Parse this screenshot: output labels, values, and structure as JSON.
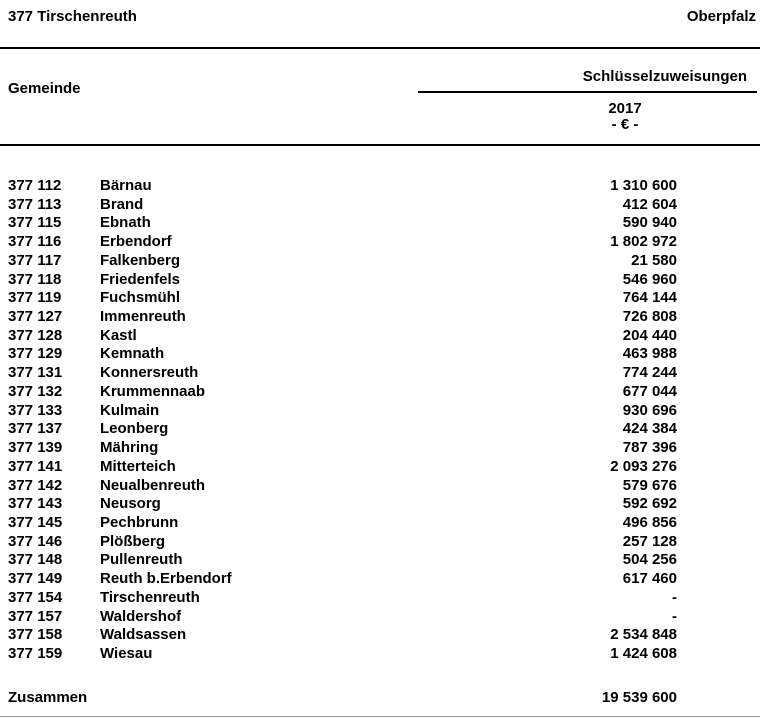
{
  "header": {
    "district": "377 Tirschenreuth",
    "region": "Oberpfalz"
  },
  "table": {
    "col_gemeinde": "Gemeinde",
    "col_allocation": "Schlüsselzuweisungen",
    "year": "2017",
    "unit": "- € -",
    "rows": [
      {
        "code": "377 112",
        "name": "Bärnau",
        "value": "1 310 600"
      },
      {
        "code": "377 113",
        "name": "Brand",
        "value": "412 604"
      },
      {
        "code": "377 115",
        "name": "Ebnath",
        "value": "590 940"
      },
      {
        "code": "377 116",
        "name": "Erbendorf",
        "value": "1 802 972"
      },
      {
        "code": "377 117",
        "name": "Falkenberg",
        "value": "21 580"
      },
      {
        "code": "377 118",
        "name": "Friedenfels",
        "value": "546 960"
      },
      {
        "code": "377 119",
        "name": "Fuchsmühl",
        "value": "764 144"
      },
      {
        "code": "377 127",
        "name": "Immenreuth",
        "value": "726 808"
      },
      {
        "code": "377 128",
        "name": "Kastl",
        "value": "204 440"
      },
      {
        "code": "377 129",
        "name": "Kemnath",
        "value": "463 988"
      },
      {
        "code": "377 131",
        "name": "Konnersreuth",
        "value": "774 244"
      },
      {
        "code": "377 132",
        "name": "Krummennaab",
        "value": "677 044"
      },
      {
        "code": "377 133",
        "name": "Kulmain",
        "value": "930 696"
      },
      {
        "code": "377 137",
        "name": "Leonberg",
        "value": "424 384"
      },
      {
        "code": "377 139",
        "name": "Mähring",
        "value": "787 396"
      },
      {
        "code": "377 141",
        "name": "Mitterteich",
        "value": "2 093 276"
      },
      {
        "code": "377 142",
        "name": "Neualbenreuth",
        "value": "579 676"
      },
      {
        "code": "377 143",
        "name": "Neusorg",
        "value": "592 692"
      },
      {
        "code": "377 145",
        "name": "Pechbrunn",
        "value": "496 856"
      },
      {
        "code": "377 146",
        "name": "Plößberg",
        "value": "257 128"
      },
      {
        "code": "377 148",
        "name": "Pullenreuth",
        "value": "504 256"
      },
      {
        "code": "377 149",
        "name": "Reuth b.Erbendorf",
        "value": "617 460"
      },
      {
        "code": "377 154",
        "name": "Tirschenreuth",
        "value": "-"
      },
      {
        "code": "377 157",
        "name": "Waldershof",
        "value": "-"
      },
      {
        "code": "377 158",
        "name": "Waldsassen",
        "value": "2 534 848"
      },
      {
        "code": "377 159",
        "name": "Wiesau",
        "value": "1 424 608"
      }
    ],
    "total_label": "Zusammen",
    "total_value": "19 539 600"
  }
}
